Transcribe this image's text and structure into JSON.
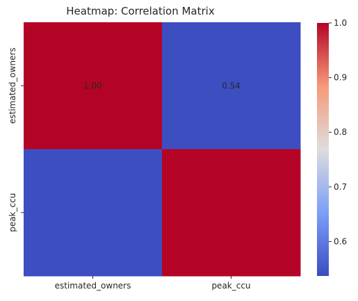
{
  "chart_data": {
    "type": "heatmap",
    "title": "Heatmap: Correlation Matrix",
    "x_categories": [
      "estimated_owners",
      "peak_ccu"
    ],
    "y_categories": [
      "estimated_owners",
      "peak_ccu"
    ],
    "values": [
      [
        1.0,
        0.54
      ],
      [
        0.54,
        1.0
      ]
    ],
    "annotations": [
      [
        "1.00",
        "0.54"
      ],
      [
        "",
        ""
      ]
    ],
    "colormap": "coolwarm",
    "low_color": "#3b4cc0",
    "high_color": "#b40426",
    "annotation_color": "#ffffff",
    "colorbar": {
      "vmin": 0.537,
      "vmax": 1.0,
      "ticks": [
        0.6,
        0.7,
        0.8,
        0.9,
        1.0
      ],
      "tick_labels": [
        "0.6",
        "0.7",
        "0.8",
        "0.9",
        "1.0"
      ],
      "position": "right"
    },
    "grid": false
  }
}
